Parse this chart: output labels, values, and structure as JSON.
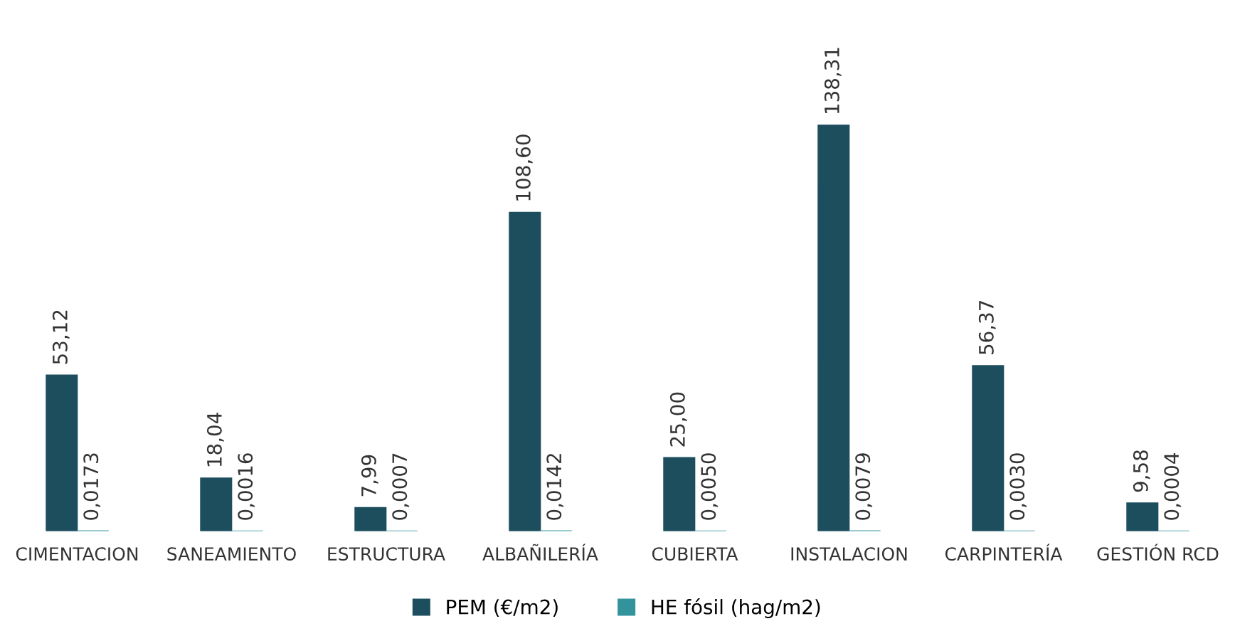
{
  "chart_data": {
    "type": "bar",
    "categories": [
      "CIMENTACION",
      "SANEAMIENTO",
      "ESTRUCTURA",
      "ALBAÑILERÍA",
      "CUBIERTA",
      "INSTALACION",
      "CARPINTERÍA",
      "GESTIÓN RCD"
    ],
    "series": [
      {
        "name": "PEM (€/m2)",
        "color": "#1d4e5e",
        "values": [
          53.12,
          18.04,
          7.99,
          108.6,
          25.0,
          138.31,
          56.37,
          9.58
        ],
        "value_labels": [
          "53,12",
          "18,04",
          "7,99",
          "108,60",
          "25,00",
          "138,31",
          "56,37",
          "9,58"
        ]
      },
      {
        "name": "HE fósil (hag/m2)",
        "color": "#33939c",
        "values": [
          0.0173,
          0.0016,
          0.0007,
          0.0142,
          0.005,
          0.0079,
          0.003,
          0.0004
        ],
        "value_labels": [
          "0,0173",
          "0,0016",
          "0,0007",
          "0,0142",
          "0,0050",
          "0,0079",
          "0,0030",
          "0,0004"
        ]
      }
    ],
    "legend": "bottom",
    "grid": false
  }
}
